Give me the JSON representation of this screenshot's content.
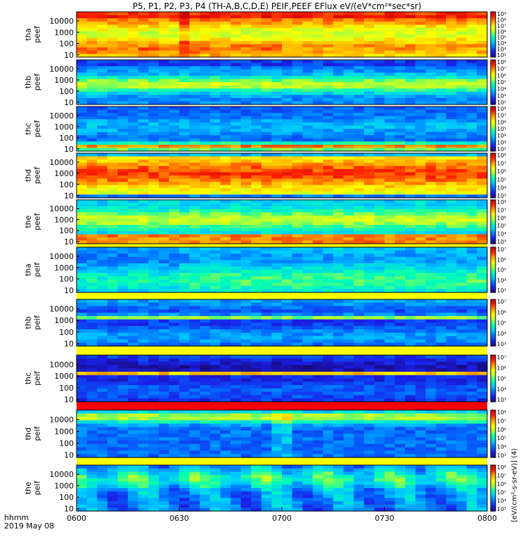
{
  "title": "P5, P1, P2, P3, P4 (TH-A,B,C,D,E) PEIF,PEEF EFlux eV/(eV*cm²*sec*sr)",
  "footer": {
    "time_label": "hhmm",
    "date_label": "2019 May 08"
  },
  "colorbar_unit": "[eV/(cm²-s-sr-eV)] (4)",
  "chart_data": {
    "type": "heatmap",
    "x_ticks": [
      "0600",
      "0630",
      "0700",
      "0730",
      "0800"
    ],
    "x_range": [
      "0600",
      "0800"
    ],
    "y_ticks": [
      "10",
      "100",
      "1000",
      "10000"
    ],
    "y_scale": "log",
    "panels": [
      {
        "probe": "tha",
        "quantity": "peef",
        "cbar_ticks": [
          "10²",
          "10³",
          "10⁴",
          "10⁵",
          "10⁶",
          "10⁷",
          "10⁸",
          "10⁹"
        ]
      },
      {
        "probe": "thb",
        "quantity": "peef",
        "cbar_ticks": [
          "10²",
          "10³",
          "10⁴",
          "10⁵",
          "10⁶",
          "10⁷",
          "10⁸"
        ]
      },
      {
        "probe": "thc",
        "quantity": "peef",
        "cbar_ticks": [
          "10²",
          "10³",
          "10⁴",
          "10⁵",
          "10⁶",
          "10⁷",
          "10⁸"
        ]
      },
      {
        "probe": "thd",
        "quantity": "peef",
        "cbar_ticks": [
          "10³",
          "10⁴",
          "10⁵",
          "10⁶",
          "10⁷",
          "10⁸"
        ]
      },
      {
        "probe": "the",
        "quantity": "peef",
        "cbar_ticks": [
          "10³",
          "10⁴",
          "10⁵",
          "10⁶",
          "10⁷",
          "10⁸"
        ]
      },
      {
        "probe": "tha",
        "quantity": "peif",
        "cbar_ticks": [
          "10³",
          "10⁴",
          "10⁵",
          "10⁶",
          "10⁷"
        ]
      },
      {
        "probe": "thb",
        "quantity": "peif",
        "cbar_ticks": [
          "10³",
          "10⁴",
          "10⁵",
          "10⁶",
          "10⁷"
        ]
      },
      {
        "probe": "thc",
        "quantity": "peif",
        "cbar_ticks": [
          "10³",
          "10⁴",
          "10⁵",
          "10⁶",
          "10⁷"
        ]
      },
      {
        "probe": "thd",
        "quantity": "peif",
        "cbar_ticks": [
          "10³",
          "10⁴",
          "10⁵",
          "10⁶",
          "10⁷",
          "10⁸"
        ]
      },
      {
        "probe": "the",
        "quantity": "peif",
        "cbar_ticks": [
          "10³",
          "10⁴",
          "10⁵",
          "10⁶",
          "10⁷",
          "10⁸"
        ]
      }
    ]
  },
  "colors": {
    "colormap": [
      "#1a0a80",
      "#1a20e8",
      "#0070ff",
      "#00c8ff",
      "#00ffb4",
      "#a0ff40",
      "#ffff00",
      "#ffa000",
      "#ff2000",
      "#c80000"
    ],
    "separator_yellow": "#ffff00",
    "separator_red": "#ff0000"
  }
}
